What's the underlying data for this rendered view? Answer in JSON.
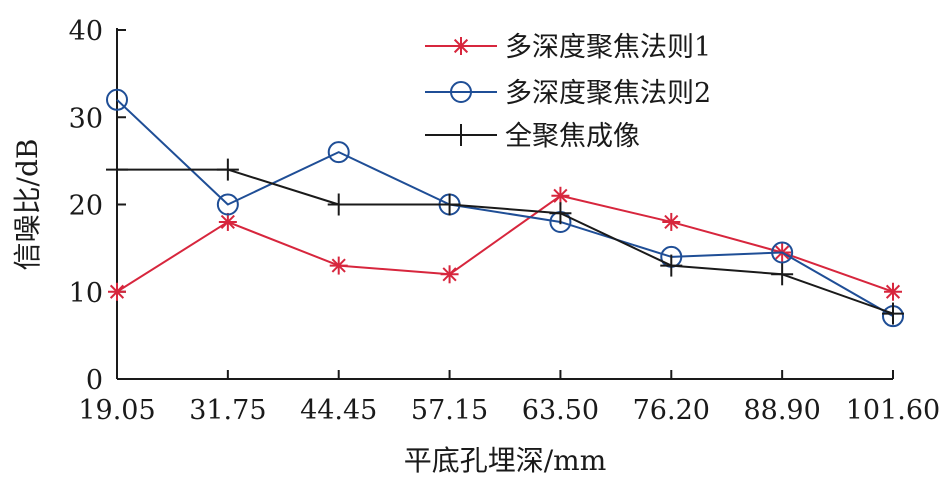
{
  "chart_data": {
    "type": "line",
    "categories": [
      "19.05",
      "31.75",
      "44.45",
      "57.15",
      "63.50",
      "76.20",
      "88.90",
      "101.60"
    ],
    "series": [
      {
        "name": "多深度聚焦法则1",
        "marker": "asterisk",
        "color": "#d7263d",
        "values": [
          10,
          18,
          13,
          12,
          21,
          18,
          14.5,
          10
        ]
      },
      {
        "name": "多深度聚焦法则2",
        "marker": "circle",
        "color": "#1f4e96",
        "values": [
          32,
          20,
          26,
          20,
          18,
          14,
          14.5,
          7.2
        ]
      },
      {
        "name": "全聚焦成像",
        "marker": "plus",
        "color": "#1a1a1a",
        "values": [
          24,
          24,
          20,
          20,
          19,
          13,
          12,
          7.5
        ]
      }
    ],
    "xlabel": "平底孔埋深/mm",
    "ylabel": "信噪比/dB",
    "ylim": [
      0,
      40
    ],
    "yticks": [
      0,
      10,
      20,
      30,
      40
    ],
    "grid": false,
    "legend_position": "top-right"
  }
}
